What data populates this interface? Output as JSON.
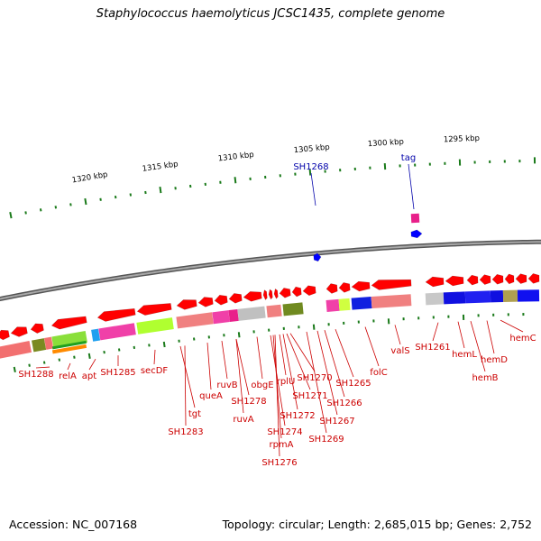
{
  "title": "Staphylococcus haemolyticus JCSC1435, complete genome",
  "footer": {
    "accession": "Accession: NC_007168",
    "topology": "Topology: circular; Length: 2,685,015 bp; Genes: 2,752"
  },
  "colors": {
    "backbone": "#7f7f7f",
    "forward_gene": "#0000ff",
    "reverse_gene": "#ff0000",
    "gene_label": "#cc0000",
    "top_label": "#0000aa",
    "tick": "#1a7a1a"
  },
  "scale_labels": [
    "1320 kbp",
    "1315 kbp",
    "1310 kbp",
    "1305 kbp",
    "1300 kbp",
    "1295 kbp"
  ],
  "top_labels": [
    "SH1268",
    "tag"
  ],
  "gene_labels": [
    "SH1288",
    "relA",
    "apt",
    "SH1285",
    "secDF",
    "tgt",
    "SH1283",
    "queA",
    "ruvB",
    "SH1278",
    "ruvA",
    "obgE",
    "SH1274",
    "rpmA",
    "SH1276",
    "rplU",
    "SH1272",
    "SH1271",
    "SH1270",
    "SH1269",
    "SH1267",
    "SH1266",
    "SH1265",
    "folC",
    "valS",
    "SH1261",
    "hemL",
    "hemB",
    "hemD",
    "hemC"
  ]
}
